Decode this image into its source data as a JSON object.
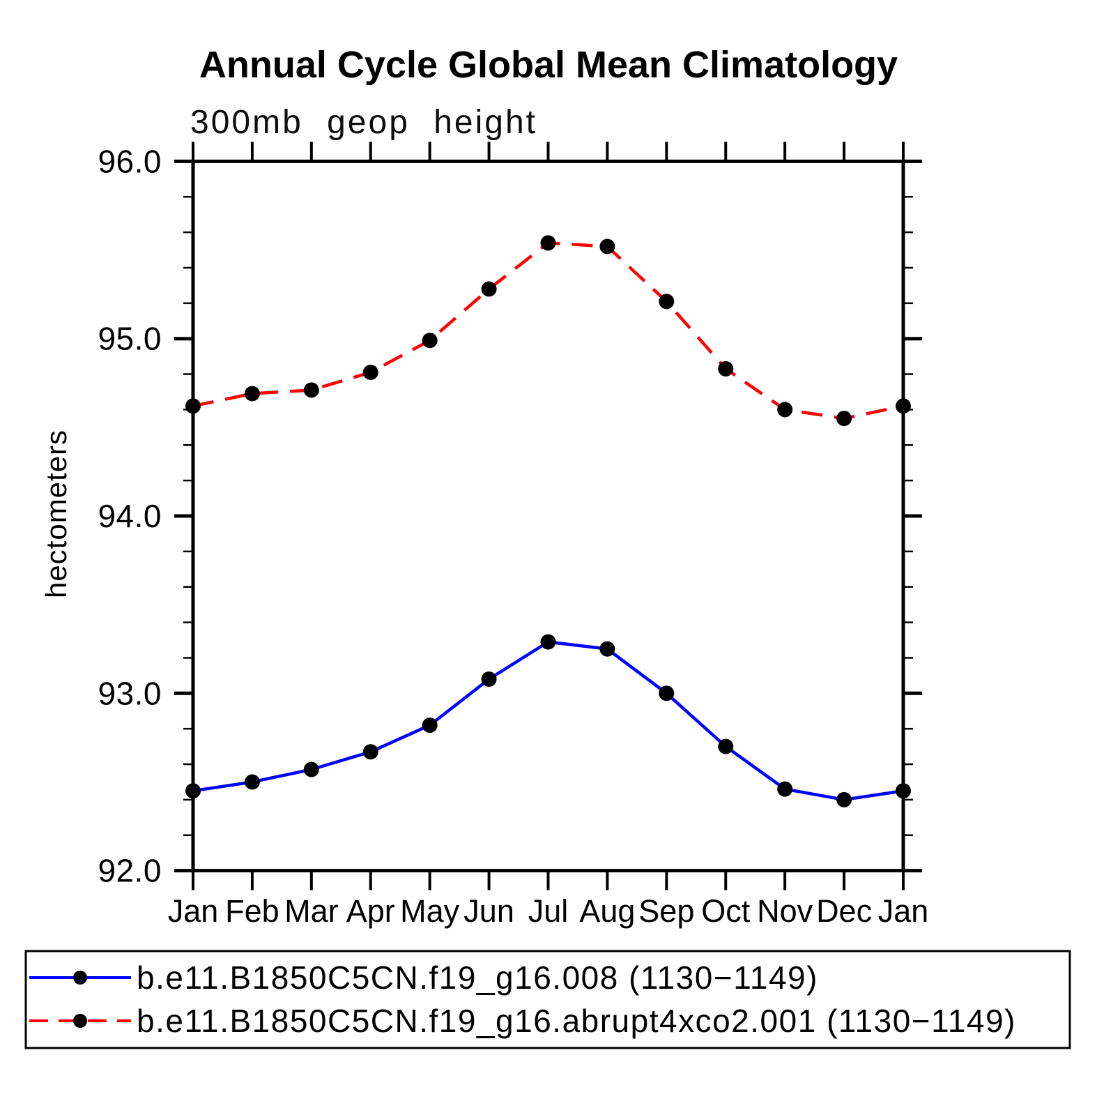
{
  "header": {
    "title": "Annual Cycle Global Mean Climatology",
    "subtitle": "300mb geop height"
  },
  "colors": {
    "control_line": "#0000ff",
    "perturb_line": "#ff0000",
    "marker": "#000000",
    "axis": "#000000"
  },
  "chart_data": {
    "type": "line",
    "title": "Annual Cycle Global Mean Climatology",
    "subtitle": "300mb geop height",
    "xlabel": "",
    "ylabel": "hectometers",
    "ylim": [
      92.0,
      96.0
    ],
    "ytick_major_step": 1.0,
    "ytick_minor_step": 0.2,
    "ytick_labels": [
      "92.0",
      "93.0",
      "94.0",
      "95.0",
      "96.0"
    ],
    "grid": false,
    "legend_position": "bottom",
    "categories": [
      "Jan",
      "Feb",
      "Mar",
      "Apr",
      "May",
      "Jun",
      "Jul",
      "Aug",
      "Sep",
      "Oct",
      "Nov",
      "Dec",
      "Jan"
    ],
    "series": [
      {
        "name": "b.e11.B1850C5CN.f19_g16.008 (1130−1149)",
        "line_style": "solid",
        "color": "#0000ff",
        "marker": "filled-circle",
        "marker_color": "#000000",
        "values": [
          92.45,
          92.5,
          92.57,
          92.67,
          92.82,
          93.08,
          93.29,
          93.25,
          93.0,
          92.7,
          92.46,
          92.4,
          92.45
        ]
      },
      {
        "name": "b.e11.B1850C5CN.f19_g16.abrupt4xco2.001 (1130−1149)",
        "line_style": "dashed",
        "color": "#ff0000",
        "marker": "filled-circle",
        "marker_color": "#000000",
        "values": [
          94.62,
          94.69,
          94.71,
          94.81,
          94.99,
          95.28,
          95.54,
          95.52,
          95.21,
          94.83,
          94.6,
          94.55,
          94.62
        ]
      }
    ]
  }
}
